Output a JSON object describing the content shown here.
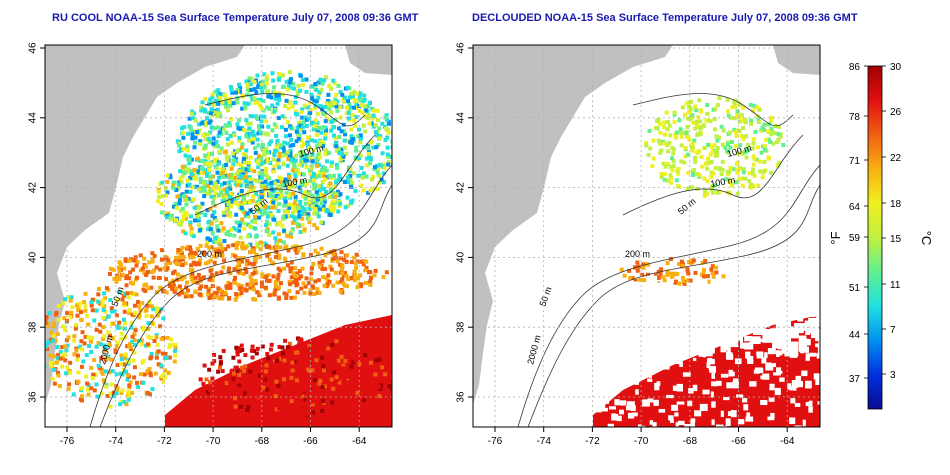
{
  "panels": [
    {
      "id": "left",
      "title": "RU COOL NOAA-15 Sea Surface Temperature July 07, 2008 09:36 GMT",
      "contour_labels": [
        "100 m",
        "100 m",
        "50 m",
        "200 m",
        "50 m",
        "2000 m"
      ],
      "declouded": false
    },
    {
      "id": "right",
      "title": "DECLOUDED NOAA-15 Sea Surface Temperature July 07, 2008 09:36 GMT",
      "contour_labels": [
        "100 m",
        "100 m",
        "50 m",
        "200 m",
        "50 m",
        "2000 m"
      ],
      "declouded": true
    }
  ],
  "x_ticks": [
    "-76",
    "-74",
    "-72",
    "-70",
    "-68",
    "-66",
    "-64"
  ],
  "y_ticks": [
    "46",
    "44",
    "42",
    "40",
    "38",
    "36"
  ],
  "colorbar": {
    "fahrenheit_labels": [
      "86",
      "78",
      "71",
      "64",
      "59",
      "51",
      "44",
      "37"
    ],
    "celsius_labels": [
      "30",
      "26",
      "22",
      "18",
      "15",
      "11",
      "7",
      "3"
    ],
    "unit_f": "°F",
    "unit_c": "°C",
    "colors": [
      "#0a0a90",
      "#0030e0",
      "#0090f0",
      "#20e0e0",
      "#60f090",
      "#c0f040",
      "#f0f020",
      "#f8b010",
      "#f06010",
      "#e01010",
      "#a00000"
    ]
  },
  "colors": {
    "land": "#c0c0c0",
    "cloud": "#ffffff",
    "title": "#1a1ab0",
    "grid": "#b0b0b0"
  }
}
